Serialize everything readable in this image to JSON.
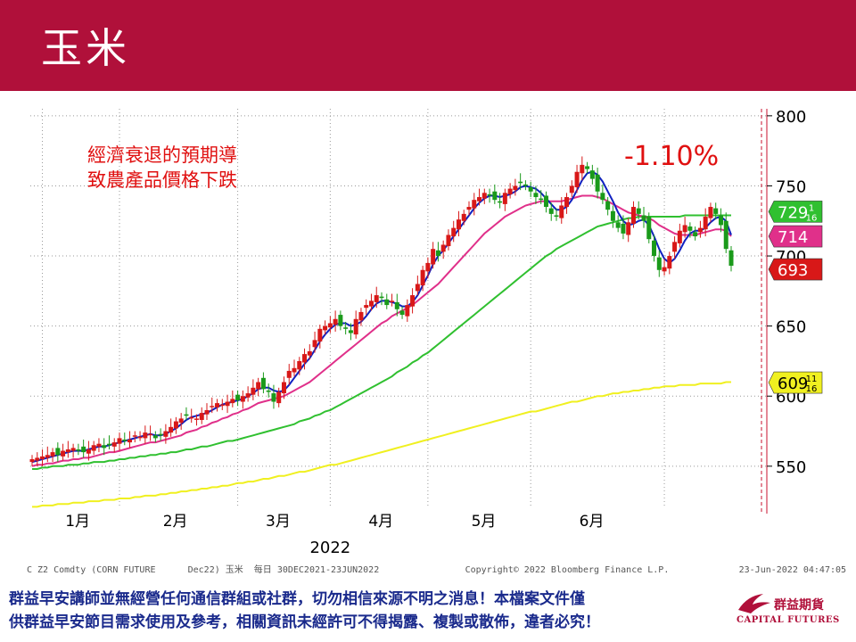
{
  "header": {
    "title": "玉米"
  },
  "annotation": {
    "line1": "經濟衰退的預期導",
    "line2": "致農產品價格下跌"
  },
  "change": "-1.10%",
  "footer": {
    "ticker": "C Z2 Comdty (CORN FUTURE",
    "contract": "Dec22) 玉米  每日 30DEC2021-23JUN2022",
    "copyright": "Copyright© 2022 Bloomberg Finance L.P.",
    "timestamp": "23-Jun-2022 04:47:05"
  },
  "disclaimer": {
    "line1": "群益早安講師並無經營任何通信群組或社群，切勿相信來源不明之消息！本檔案文件僅",
    "line2": "供群益早安節目需求使用及參考，相關資訊未經許可不得揭露、複製或散佈，違者必究！"
  },
  "logo": {
    "name": "群益期貨",
    "en": "CAPITAL FUTURES"
  },
  "colors": {
    "header": "#b0103a",
    "up": "#d81818",
    "down": "#1a9a1a",
    "ma5": "#1020c0",
    "ma20": "#e0308a",
    "ma60": "#30c030",
    "ma200": "#f0f020"
  },
  "chart_data": {
    "type": "candlestick",
    "title": "",
    "x_labels": [
      "1月",
      "2月",
      "3月",
      "4月",
      "5月",
      "6月"
    ],
    "year_label": "2022",
    "ylim": [
      520,
      805
    ],
    "y_ticks": [
      550,
      600,
      650,
      700,
      750,
      800
    ],
    "price_tags": [
      {
        "label": "729",
        "frac_num": "1",
        "frac_den": "16",
        "color": "#30c030",
        "value": 729.06
      },
      {
        "label": "714",
        "frac_num": "",
        "frac_den": "",
        "color": "#e0308a",
        "value": 714
      },
      {
        "label": "693",
        "frac_num": "",
        "frac_den": "",
        "color": "#d81818",
        "value": 693
      },
      {
        "label": "609",
        "frac_num": "11",
        "frac_den": "16",
        "color": "#f0f020",
        "value": 609.69
      }
    ],
    "series": [
      {
        "name": "",
        "type": "close",
        "values": [
          555,
          556,
          557,
          558,
          560,
          558,
          561,
          562,
          563,
          561,
          560,
          562,
          565,
          566,
          563,
          565,
          567,
          570,
          568,
          569,
          572,
          571,
          574,
          573,
          570,
          572,
          575,
          578,
          582,
          584,
          586,
          585,
          584,
          588,
          590,
          593,
          595,
          594,
          596,
          598,
          597,
          600,
          602,
          606,
          610,
          605,
          603,
          596,
          603,
          610,
          618,
          620,
          625,
          630,
          632,
          640,
          648,
          650,
          652,
          655,
          650,
          648,
          645,
          655,
          660,
          665,
          668,
          672,
          670,
          665,
          668,
          662,
          658,
          665,
          672,
          680,
          690,
          695,
          705,
          700,
          708,
          715,
          720,
          726,
          730,
          735,
          740,
          742,
          745,
          743,
          740,
          738,
          745,
          748,
          750,
          752,
          750,
          746,
          742,
          740,
          735,
          730,
          728,
          736,
          742,
          750,
          760,
          765,
          762,
          755,
          746,
          740,
          733,
          725,
          720,
          716,
          724,
          735,
          730,
          725,
          712,
          700,
          690,
          692,
          700,
          710,
          718,
          722,
          718,
          714,
          720,
          728,
          735,
          730,
          722,
          705,
          693
        ]
      },
      {
        "name": "",
        "type": "ma5",
        "values": [
          553,
          554,
          555,
          556,
          557,
          558,
          559,
          560,
          561,
          561,
          561,
          562,
          563,
          564,
          564,
          565,
          566,
          567,
          568,
          569,
          570,
          571,
          572,
          573,
          572,
          572,
          573,
          575,
          577,
          580,
          583,
          585,
          586,
          587,
          588,
          590,
          592,
          594,
          595,
          596,
          597,
          598,
          600,
          602,
          605,
          606,
          606,
          604,
          603,
          604,
          608,
          613,
          618,
          623,
          627,
          633,
          639,
          644,
          648,
          651,
          652,
          652,
          650,
          651,
          653,
          657,
          662,
          666,
          668,
          668,
          667,
          666,
          664,
          664,
          667,
          672,
          679,
          686,
          694,
          700,
          704,
          709,
          714,
          719,
          724,
          729,
          734,
          738,
          741,
          743,
          743,
          742,
          743,
          744,
          746,
          749,
          750,
          749,
          748,
          745,
          741,
          737,
          733,
          733,
          735,
          740,
          747,
          754,
          759,
          760,
          758,
          753,
          746,
          739,
          731,
          725,
          722,
          723,
          725,
          726,
          722,
          714,
          705,
          698,
          695,
          698,
          704,
          711,
          716,
          718,
          718,
          720,
          724,
          727,
          728,
          725,
          715
        ]
      },
      {
        "name": "",
        "type": "ma20",
        "values": [
          550,
          551,
          551,
          552,
          552,
          553,
          554,
          554,
          555,
          555,
          556,
          556,
          557,
          558,
          559,
          560,
          560,
          561,
          562,
          563,
          564,
          565,
          566,
          567,
          567,
          568,
          569,
          570,
          571,
          572,
          574,
          575,
          576,
          578,
          579,
          581,
          582,
          584,
          585,
          587,
          588,
          590,
          591,
          593,
          595,
          596,
          597,
          598,
          599,
          600,
          602,
          604,
          606,
          608,
          610,
          613,
          616,
          619,
          622,
          625,
          628,
          631,
          634,
          637,
          640,
          643,
          646,
          649,
          652,
          654,
          657,
          659,
          661,
          663,
          665,
          668,
          671,
          674,
          677,
          680,
          684,
          688,
          692,
          696,
          700,
          704,
          708,
          712,
          716,
          719,
          722,
          725,
          728,
          730,
          732,
          734,
          736,
          737,
          738,
          739,
          739,
          739,
          739,
          739,
          740,
          741,
          742,
          743,
          743,
          743,
          742,
          741,
          739,
          737,
          735,
          733,
          731,
          730,
          729,
          728,
          727,
          725,
          722,
          720,
          718,
          716,
          715,
          715,
          715,
          715,
          716,
          717,
          718,
          719,
          719,
          718,
          714
        ]
      },
      {
        "name": "",
        "type": "ma60",
        "values": [
          548,
          548,
          549,
          549,
          550,
          550,
          550,
          551,
          551,
          551,
          552,
          552,
          553,
          553,
          553,
          554,
          554,
          555,
          555,
          556,
          556,
          557,
          557,
          558,
          558,
          559,
          559,
          560,
          560,
          561,
          562,
          562,
          563,
          564,
          564,
          565,
          566,
          567,
          568,
          568,
          569,
          570,
          571,
          572,
          573,
          574,
          575,
          576,
          577,
          578,
          579,
          580,
          582,
          583,
          584,
          586,
          587,
          589,
          590,
          592,
          594,
          596,
          598,
          600,
          602,
          604,
          606,
          608,
          610,
          612,
          614,
          617,
          619,
          621,
          624,
          626,
          629,
          631,
          634,
          637,
          640,
          643,
          646,
          649,
          652,
          655,
          658,
          661,
          664,
          667,
          670,
          673,
          676,
          679,
          682,
          685,
          688,
          691,
          694,
          697,
          700,
          702,
          705,
          707,
          709,
          711,
          713,
          715,
          717,
          719,
          721,
          722,
          723,
          724,
          725,
          726,
          727,
          727,
          728,
          728,
          728,
          728,
          728,
          728,
          728,
          728,
          728,
          729,
          729,
          729,
          729,
          729,
          729,
          729,
          729,
          729,
          729
        ]
      },
      {
        "name": "",
        "type": "ma200",
        "values": [
          521,
          521,
          522,
          522,
          522,
          523,
          523,
          523,
          524,
          524,
          524,
          525,
          525,
          525,
          526,
          526,
          526,
          527,
          527,
          527,
          528,
          528,
          529,
          529,
          529,
          530,
          530,
          531,
          531,
          532,
          532,
          533,
          533,
          534,
          534,
          535,
          535,
          536,
          536,
          537,
          538,
          538,
          539,
          539,
          540,
          541,
          541,
          542,
          543,
          543,
          544,
          545,
          546,
          546,
          547,
          548,
          549,
          550,
          551,
          551,
          552,
          553,
          554,
          555,
          556,
          557,
          558,
          559,
          560,
          561,
          562,
          563,
          564,
          565,
          566,
          567,
          568,
          569,
          570,
          571,
          572,
          573,
          574,
          575,
          576,
          577,
          578,
          579,
          580,
          581,
          582,
          583,
          584,
          585,
          586,
          587,
          588,
          589,
          589,
          590,
          591,
          592,
          593,
          594,
          595,
          596,
          596,
          597,
          598,
          599,
          600,
          600,
          601,
          602,
          602,
          603,
          603,
          604,
          604,
          605,
          605,
          606,
          606,
          607,
          607,
          607,
          608,
          608,
          608,
          608,
          609,
          609,
          609,
          609,
          609,
          610,
          610
        ]
      }
    ]
  }
}
